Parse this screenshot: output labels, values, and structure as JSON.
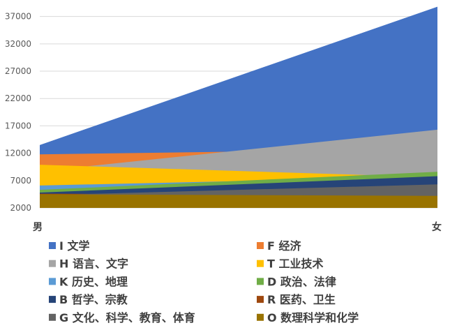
{
  "chart_data": {
    "type": "area",
    "categories": [
      "男",
      "女"
    ],
    "ylim": [
      2000,
      39000
    ],
    "yticks": [
      "37000",
      "32000",
      "27000",
      "22000",
      "17000",
      "12000",
      "7000",
      "2000"
    ],
    "ytick_values": [
      37000,
      32000,
      27000,
      22000,
      17000,
      12000,
      7000,
      2000
    ],
    "grid": true,
    "legend_position": "bottom",
    "series": [
      {
        "name": "I 文学",
        "color": "#4472c4",
        "values": [
          13500,
          38800
        ]
      },
      {
        "name": "F 经济",
        "color": "#ed7d31",
        "values": [
          11800,
          12800
        ]
      },
      {
        "name": "H 语言、文字",
        "color": "#a5a5a5",
        "values": [
          8700,
          16300
        ]
      },
      {
        "name": "T 工业技术",
        "color": "#ffc000",
        "values": [
          9900,
          7600
        ]
      },
      {
        "name": "K 历史、地理",
        "color": "#5b9bd5",
        "values": [
          6100,
          7700
        ]
      },
      {
        "name": "D 政治、法律",
        "color": "#70ad47",
        "values": [
          5300,
          8600
        ]
      },
      {
        "name": "B 哲学、宗教",
        "color": "#264478",
        "values": [
          4800,
          7800
        ]
      },
      {
        "name": "R 医药、卫生",
        "color": "#9e480e",
        "values": [
          4600,
          4300
        ]
      },
      {
        "name": "G 文化、科学、教育、体育",
        "color": "#636363",
        "values": [
          4300,
          6300
        ]
      },
      {
        "name": "O 数理科学和化学",
        "color": "#997300",
        "values": [
          4500,
          4200
        ]
      }
    ]
  }
}
